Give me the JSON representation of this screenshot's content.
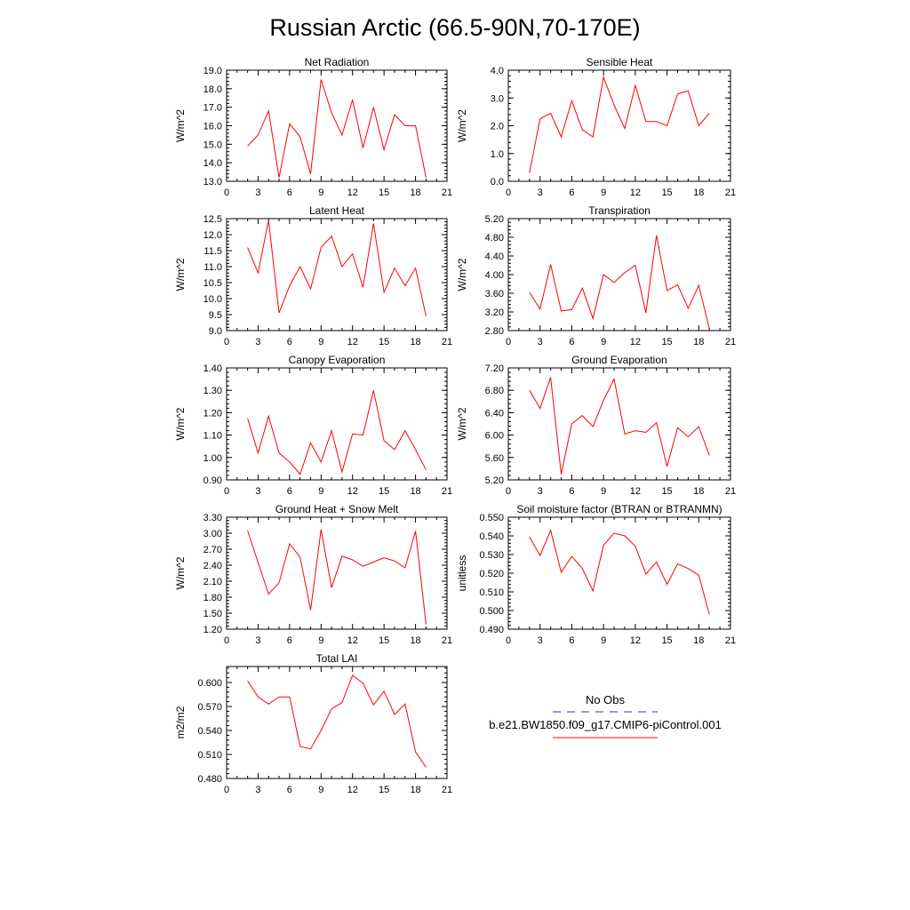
{
  "figure": {
    "title": "Russian Arctic (66.5-90N,70-170E)",
    "colors": {
      "model": "#ff0000",
      "obs": "#3333aa",
      "axis": "#000000"
    }
  },
  "legend": {
    "obs_label": "No Obs",
    "model_label": "b.e21.BW1850.f09_g17.CMIP6-piControl.001"
  },
  "chart_data": [
    {
      "type": "line",
      "title": "Net Radiation",
      "ylabel": "W/m^2",
      "xlim": [
        0,
        21
      ],
      "ylim": [
        13.0,
        19.0
      ],
      "xticks": [
        "0",
        "3",
        "6",
        "9",
        "12",
        "15",
        "18",
        "21"
      ],
      "yticks": [
        "13.0",
        "14.0",
        "15.0",
        "16.0",
        "17.0",
        "18.0",
        "19.0"
      ],
      "x": [
        2,
        3,
        4,
        5,
        6,
        7,
        8,
        9,
        10,
        11,
        12,
        13,
        14,
        15,
        16,
        17,
        18,
        19
      ],
      "series": [
        {
          "values": [
            14.9,
            15.5,
            16.8,
            13.2,
            16.1,
            15.4,
            13.4,
            18.5,
            16.7,
            15.5,
            17.4,
            14.8,
            17.0,
            14.7,
            16.6,
            16.0,
            16.0,
            13.2
          ]
        }
      ]
    },
    {
      "type": "line",
      "title": "Sensible Heat",
      "ylabel": "W/m^2",
      "xlim": [
        0,
        21
      ],
      "ylim": [
        0.0,
        4.0
      ],
      "xticks": [
        "0",
        "3",
        "6",
        "9",
        "12",
        "15",
        "18",
        "21"
      ],
      "yticks": [
        "0.0",
        "1.0",
        "2.0",
        "3.0",
        "4.0"
      ],
      "x": [
        2,
        3,
        4,
        5,
        6,
        7,
        8,
        9,
        10,
        11,
        12,
        13,
        14,
        15,
        16,
        17,
        18,
        19
      ],
      "series": [
        {
          "values": [
            0.3,
            2.25,
            2.45,
            1.6,
            2.9,
            1.85,
            1.6,
            3.75,
            2.75,
            1.9,
            3.45,
            2.15,
            2.15,
            2.0,
            3.15,
            3.25,
            2.0,
            2.45
          ]
        }
      ]
    },
    {
      "type": "line",
      "title": "Latent Heat",
      "ylabel": "W/m^2",
      "xlim": [
        0,
        21
      ],
      "ylim": [
        9.0,
        12.5
      ],
      "xticks": [
        "0",
        "3",
        "6",
        "9",
        "12",
        "15",
        "18",
        "21"
      ],
      "yticks": [
        "9.0",
        "9.5",
        "10.0",
        "10.5",
        "11.0",
        "11.5",
        "12.0",
        "12.5"
      ],
      "x": [
        2,
        3,
        4,
        5,
        6,
        7,
        8,
        9,
        10,
        11,
        12,
        13,
        14,
        15,
        16,
        17,
        18,
        19
      ],
      "series": [
        {
          "values": [
            11.6,
            10.8,
            12.45,
            9.55,
            10.4,
            11.0,
            10.3,
            11.6,
            11.95,
            11.0,
            11.4,
            10.35,
            12.35,
            10.2,
            10.95,
            10.4,
            10.95,
            9.45
          ]
        }
      ]
    },
    {
      "type": "line",
      "title": "Transpiration",
      "ylabel": "W/m^2",
      "xlim": [
        0,
        21
      ],
      "ylim": [
        2.8,
        5.2
      ],
      "xticks": [
        "0",
        "3",
        "6",
        "9",
        "12",
        "15",
        "18",
        "21"
      ],
      "yticks": [
        "2.80",
        "3.20",
        "3.60",
        "4.00",
        "4.40",
        "4.80",
        "5.20"
      ],
      "x": [
        2,
        3,
        4,
        5,
        6,
        7,
        8,
        9,
        10,
        11,
        12,
        13,
        14,
        15,
        16,
        17,
        18,
        19
      ],
      "series": [
        {
          "values": [
            3.62,
            3.26,
            4.22,
            3.22,
            3.25,
            3.71,
            3.06,
            4.0,
            3.83,
            4.04,
            4.2,
            3.18,
            4.84,
            3.66,
            3.78,
            3.28,
            3.77,
            2.84
          ]
        }
      ]
    },
    {
      "type": "line",
      "title": "Canopy Evaporation",
      "ylabel": "W/m^2",
      "xlim": [
        0,
        21
      ],
      "ylim": [
        0.9,
        1.4
      ],
      "xticks": [
        "0",
        "3",
        "6",
        "9",
        "12",
        "15",
        "18",
        "21"
      ],
      "yticks": [
        "0.90",
        "1.00",
        "1.10",
        "1.20",
        "1.30",
        "1.40"
      ],
      "x": [
        2,
        3,
        4,
        5,
        6,
        7,
        8,
        9,
        10,
        11,
        12,
        13,
        14,
        15,
        16,
        17,
        18,
        19
      ],
      "series": [
        {
          "values": [
            1.175,
            1.02,
            1.185,
            1.02,
            0.98,
            0.925,
            1.065,
            0.98,
            1.12,
            0.935,
            1.105,
            1.1,
            1.3,
            1.075,
            1.035,
            1.12,
            1.035,
            0.945
          ]
        }
      ]
    },
    {
      "type": "line",
      "title": "Ground Evaporation",
      "ylabel": "W/m^2",
      "xlim": [
        0,
        21
      ],
      "ylim": [
        5.2,
        7.2
      ],
      "xticks": [
        "0",
        "3",
        "6",
        "9",
        "12",
        "15",
        "18",
        "21"
      ],
      "yticks": [
        "5.20",
        "5.60",
        "6.00",
        "6.40",
        "6.80",
        "7.20"
      ],
      "x": [
        2,
        3,
        4,
        5,
        6,
        7,
        8,
        9,
        10,
        11,
        12,
        13,
        14,
        15,
        16,
        17,
        18,
        19
      ],
      "series": [
        {
          "values": [
            6.8,
            6.48,
            7.03,
            5.3,
            6.2,
            6.35,
            6.15,
            6.62,
            7.0,
            6.02,
            6.08,
            6.05,
            6.22,
            5.44,
            6.13,
            5.97,
            6.15,
            5.64
          ]
        }
      ]
    },
    {
      "type": "line",
      "title": "Ground Heat + Snow Melt",
      "ylabel": "W/m^2",
      "xlim": [
        0,
        21
      ],
      "ylim": [
        1.2,
        3.3
      ],
      "xticks": [
        "0",
        "3",
        "6",
        "9",
        "12",
        "15",
        "18",
        "21"
      ],
      "yticks": [
        "1.20",
        "1.50",
        "1.80",
        "2.10",
        "2.40",
        "2.70",
        "3.00",
        "3.30"
      ],
      "x": [
        2,
        3,
        4,
        5,
        6,
        7,
        8,
        9,
        10,
        11,
        12,
        13,
        14,
        15,
        16,
        17,
        18,
        19
      ],
      "series": [
        {
          "values": [
            3.05,
            2.45,
            1.86,
            2.07,
            2.8,
            2.55,
            1.56,
            3.07,
            1.98,
            2.57,
            2.5,
            2.38,
            2.46,
            2.54,
            2.48,
            2.35,
            3.04,
            1.29
          ]
        }
      ]
    },
    {
      "type": "line",
      "title": "Soil moisture factor (BTRAN or BTRANMN)",
      "ylabel": "unitless",
      "xlim": [
        0,
        21
      ],
      "ylim": [
        0.49,
        0.55
      ],
      "xticks": [
        "0",
        "3",
        "6",
        "9",
        "12",
        "15",
        "18",
        "21"
      ],
      "yticks": [
        "0.490",
        "0.500",
        "0.510",
        "0.520",
        "0.530",
        "0.540",
        "0.550"
      ],
      "x": [
        2,
        3,
        4,
        5,
        6,
        7,
        8,
        9,
        10,
        11,
        12,
        13,
        14,
        15,
        16,
        17,
        18,
        19
      ],
      "series": [
        {
          "values": [
            0.5395,
            0.5295,
            0.543,
            0.5205,
            0.529,
            0.5225,
            0.5105,
            0.535,
            0.5415,
            0.54,
            0.5345,
            0.5195,
            0.526,
            0.514,
            0.525,
            0.5225,
            0.519,
            0.498
          ]
        }
      ]
    },
    {
      "type": "line",
      "title": "Total LAI",
      "ylabel": "m2/m2",
      "xlim": [
        0,
        21
      ],
      "ylim": [
        0.48,
        0.62
      ],
      "xticks": [
        "0",
        "3",
        "6",
        "9",
        "12",
        "15",
        "18",
        "21"
      ],
      "yticks": [
        "0.480",
        "0.510",
        "0.540",
        "0.570",
        "0.600"
      ],
      "x": [
        2,
        3,
        4,
        5,
        6,
        7,
        8,
        9,
        10,
        11,
        12,
        13,
        14,
        15,
        16,
        17,
        18,
        19
      ],
      "series": [
        {
          "values": [
            0.602,
            0.582,
            0.573,
            0.582,
            0.582,
            0.52,
            0.517,
            0.54,
            0.567,
            0.575,
            0.609,
            0.599,
            0.572,
            0.589,
            0.56,
            0.573,
            0.513,
            0.494
          ]
        }
      ]
    }
  ]
}
